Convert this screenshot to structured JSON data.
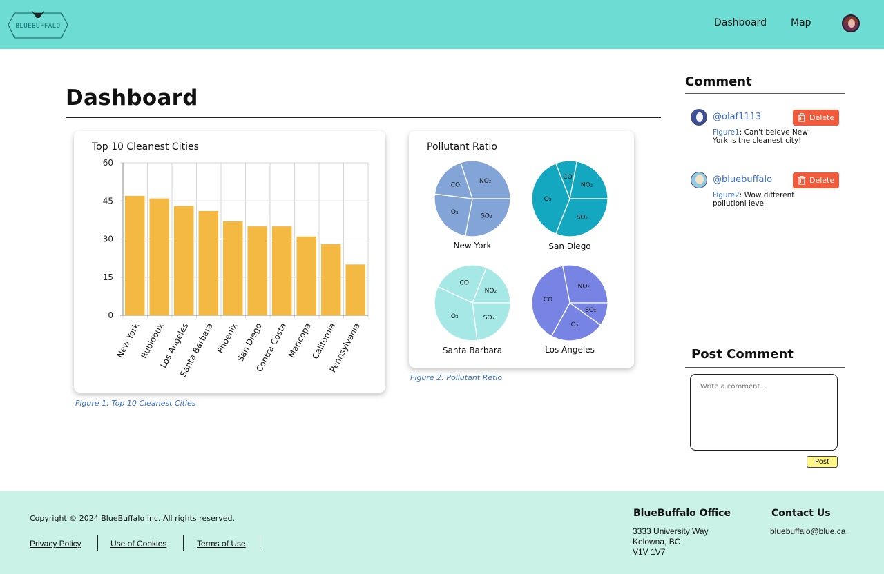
{
  "header": {
    "logo_text": "BLUEBUFFALO",
    "nav": [
      "Dashboard",
      "Map"
    ]
  },
  "main": {
    "title": "Dashboard"
  },
  "bar_card": {
    "title": "Top 10 Cleanest Cities",
    "caption": "Figure 1: Top 10 Cleanest Cities"
  },
  "pie_card": {
    "title": "Pollutant Ratio",
    "caption": "Figure 2: Pollutant Retio"
  },
  "sidebar": {
    "comment_heading": "Comment",
    "comments": [
      {
        "user": "@olaf1113",
        "figure": "Figure1",
        "text": ": Can't beleve New York is the cleanest city!",
        "delete_label": "Delete"
      },
      {
        "user": "@bluebuffalo",
        "figure": "Figure2",
        "text": ": Wow different pollutioni level.",
        "delete_label": "Delete"
      }
    ],
    "post_heading": "Post Comment",
    "placeholder": "Write a comment...",
    "post_label": "Post"
  },
  "footer": {
    "copyright": "Copyright © 2024 BlueBuffalo Inc. All rights reserved.",
    "links": [
      "Privacy Policy",
      "Use of Cookies",
      "Terms of Use"
    ],
    "office_heading": "BlueBuffalo Office",
    "office_lines": [
      "3333 University Way",
      "Kelowna, BC",
      "V1V 1V7"
    ],
    "contact_heading": "Contact Us",
    "email": "bluebuffalo@blue.ca"
  },
  "colors": {
    "header_bg": "#6ddcd2",
    "footer_bg": "#caf2e6",
    "bar": "#f4b942",
    "delete": "#f15a3a",
    "post": "#fff68a",
    "link": "#3a6fd0"
  },
  "chart_data": [
    {
      "type": "bar",
      "title": "Top 10 Cleanest Cities",
      "categories": [
        "New York",
        "Rubidoux",
        "Los Angeles",
        "Santa Barbara",
        "Phoenix",
        "San Diego",
        "Contra Costa",
        "Maricopa",
        "California",
        "Pennsylvania"
      ],
      "values": [
        47,
        46,
        43,
        41,
        37,
        35,
        35,
        31,
        28,
        20
      ],
      "yticks": [
        0,
        15,
        30,
        45,
        60
      ],
      "ylim": [
        0,
        60
      ],
      "grid": true,
      "color": "#f4b942"
    },
    {
      "type": "pie",
      "title": "Pollutant Ratio",
      "charts": [
        {
          "name": "New York",
          "color": "#82a4d6",
          "labels": [
            "NO₂",
            "SO₂",
            "O₃",
            "CO"
          ],
          "values": [
            0.3,
            0.28,
            0.24,
            0.18
          ]
        },
        {
          "name": "San Diego",
          "color": "#13a8bf",
          "labels": [
            "NO₂",
            "SO₂",
            "O₃",
            "CO"
          ],
          "values": [
            0.22,
            0.31,
            0.38,
            0.09
          ]
        },
        {
          "name": "Santa Barbara",
          "color": "#a6e8e6",
          "labels": [
            "NO₂",
            "SO₂",
            "O₃",
            "CO"
          ],
          "values": [
            0.19,
            0.23,
            0.34,
            0.24
          ]
        },
        {
          "name": "Los Angeles",
          "color": "#7784e3",
          "labels": [
            "NO₂",
            "SO₂",
            "O₃",
            "CO"
          ],
          "values": [
            0.28,
            0.1,
            0.23,
            0.39
          ]
        }
      ]
    }
  ]
}
